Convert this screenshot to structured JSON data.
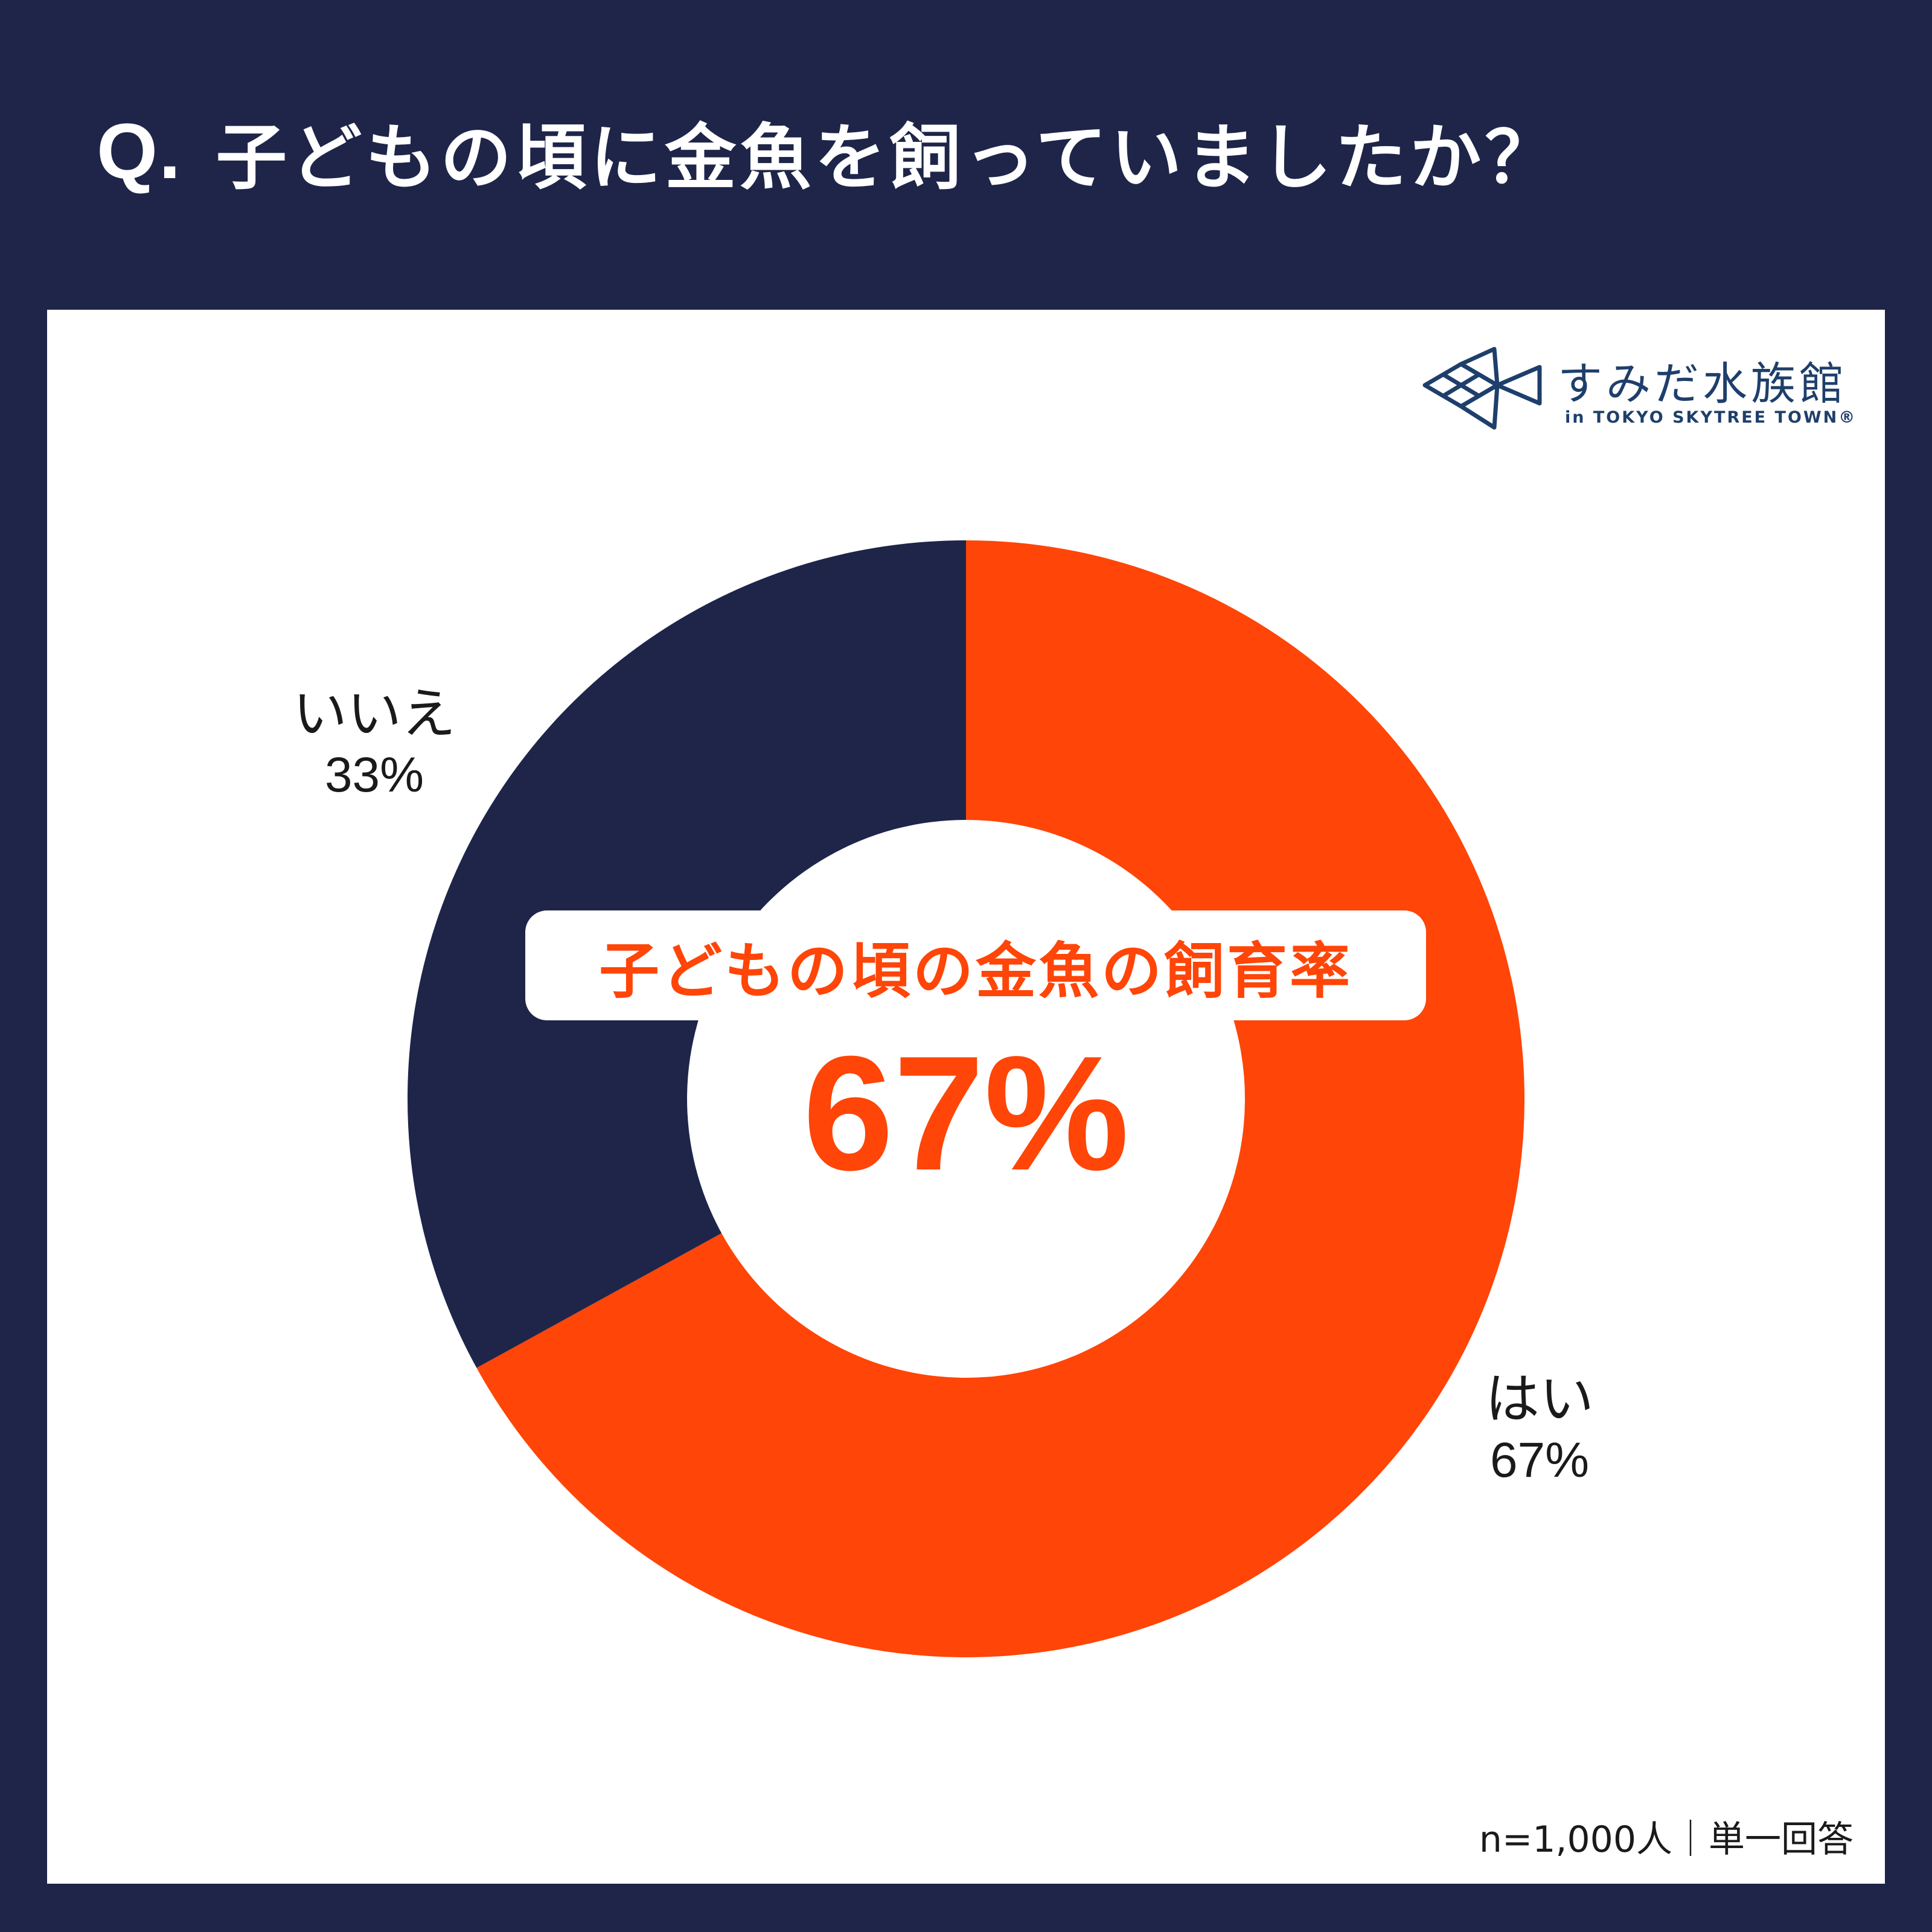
{
  "header": {
    "prefix": "Q.",
    "question": "子どもの頃に金魚を飼っていましたか？"
  },
  "logo": {
    "name": "すみだ水族館",
    "sub": "in TOKYO SKYTREE TOWN®",
    "icon": "fish-logo-icon"
  },
  "colors": {
    "background": "#1e2549",
    "panel": "#ffffff",
    "accent": "#ff4507",
    "navy": "#1e2549"
  },
  "chart_data": {
    "type": "pie",
    "donut": true,
    "categories": [
      "はい",
      "いいえ"
    ],
    "values": [
      67,
      33
    ],
    "value_labels": [
      "67%",
      "33%"
    ],
    "colors": [
      "#ff4507",
      "#1e2549"
    ],
    "start_angle_deg": 0,
    "direction": "clockwise",
    "center_title": "子どもの頃の金魚の飼育率",
    "center_value": "67%"
  },
  "footnote": "n=1,000人｜単一回答"
}
